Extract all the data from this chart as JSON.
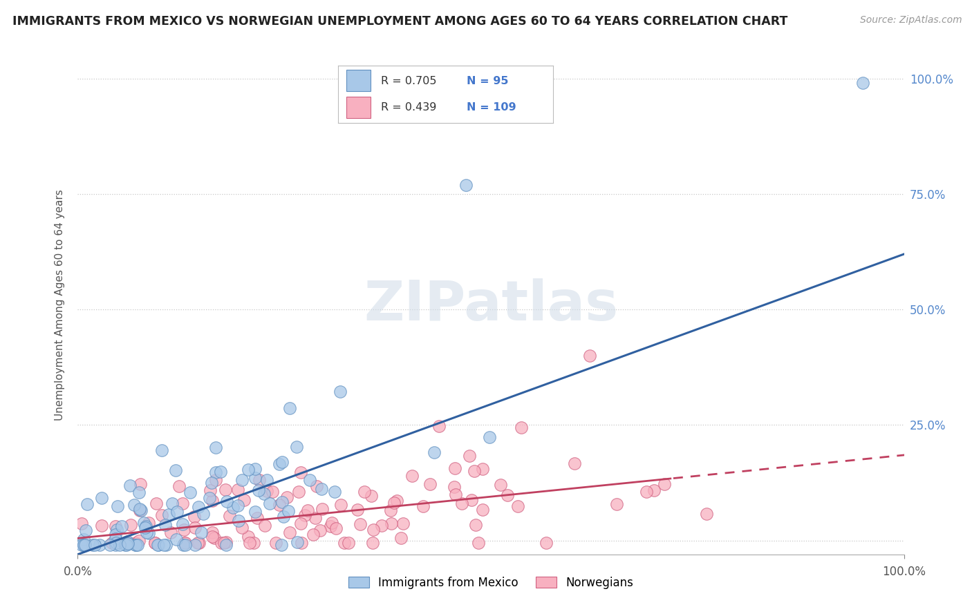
{
  "title": "IMMIGRANTS FROM MEXICO VS NORWEGIAN UNEMPLOYMENT AMONG AGES 60 TO 64 YEARS CORRELATION CHART",
  "source": "Source: ZipAtlas.com",
  "ylabel": "Unemployment Among Ages 60 to 64 years",
  "xlim": [
    0.0,
    1.0
  ],
  "ylim": [
    -0.01,
    1.05
  ],
  "grid_color": "#c8c8c8",
  "background_color": "#ffffff",
  "watermark": "ZIPatlas",
  "series1_color": "#a8c8e8",
  "series1_edge": "#6090c0",
  "series1_label": "Immigrants from Mexico",
  "series1_R": "0.705",
  "series1_N": "95",
  "series1_line_color": "#3060a0",
  "series1_line_intercept": -0.03,
  "series1_line_slope": 0.65,
  "series2_color": "#f8b0c0",
  "series2_edge": "#d06080",
  "series2_label": "Norwegians",
  "series2_R": "0.439",
  "series2_N": "109",
  "series2_line_color": "#c04060",
  "series2_line_intercept": 0.005,
  "series2_line_slope": 0.18,
  "legend_text_color": "#333333",
  "legend_num_color": "#4477cc"
}
